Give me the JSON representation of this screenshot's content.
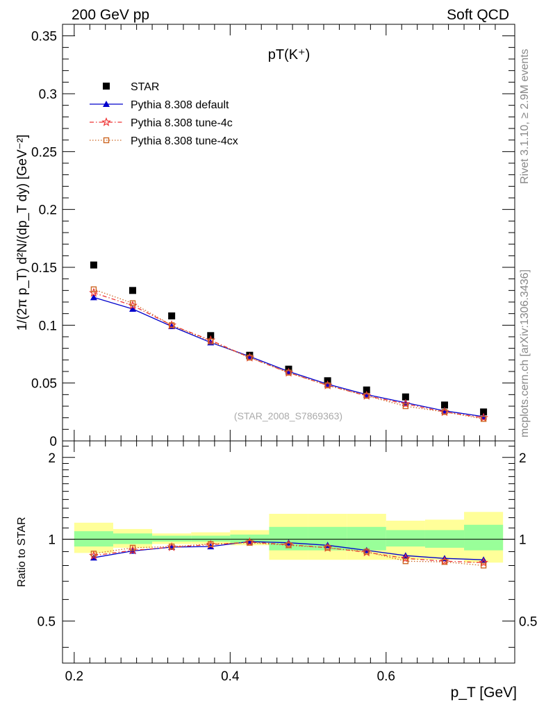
{
  "header": {
    "left": "200 GeV pp",
    "right": "Soft QCD"
  },
  "side_text": {
    "rivet": "Rivet 3.1.10, ≥ 2.9M events",
    "mcplots": "mcplots.cern.ch [arXiv:1306.3436]"
  },
  "chart_data": [
    {
      "type": "scatter",
      "title": "pT(K⁺)",
      "watermark": "(STAR_2008_S7869363)",
      "ylabel": "1/(2π p_T) d²N/(dp_T dy) [GeV⁻²]",
      "ylim": [
        0,
        0.36
      ],
      "xlim": [
        0.185,
        0.765
      ],
      "y_ticks": [
        "0.35",
        "0.3",
        "0.25",
        "0.2",
        "0.15",
        "0.1",
        "0.05",
        "0"
      ],
      "x": [
        0.225,
        0.275,
        0.325,
        0.375,
        0.425,
        0.475,
        0.525,
        0.575,
        0.625,
        0.675,
        0.725
      ],
      "series": [
        {
          "name": "STAR",
          "marker": "square",
          "color": "#000000",
          "values": [
            0.152,
            0.13,
            0.108,
            0.091,
            0.074,
            0.062,
            0.052,
            0.044,
            0.038,
            0.031,
            0.025
          ]
        },
        {
          "name": "Pythia 8.308 default",
          "marker": "triangle",
          "color": "#0000cc",
          "values": [
            0.124,
            0.114,
            0.099,
            0.085,
            0.073,
            0.06,
            0.049,
            0.04,
            0.033,
            0.026,
            0.021
          ]
        },
        {
          "name": "Pythia 8.308 tune-4c",
          "marker": "star",
          "color": "#ee3333",
          "values": [
            0.128,
            0.117,
            0.1,
            0.087,
            0.072,
            0.059,
            0.048,
            0.039,
            0.032,
            0.025,
            0.02
          ]
        },
        {
          "name": "Pythia 8.308 tune-4cx",
          "marker": "open-square",
          "color": "#cc6622",
          "values": [
            0.131,
            0.119,
            0.1,
            0.086,
            0.072,
            0.059,
            0.048,
            0.039,
            0.03,
            0.025,
            0.019
          ]
        }
      ]
    },
    {
      "type": "line",
      "ylabel": "Ratio to STAR",
      "xlabel": "p_T [GeV]",
      "ylim": [
        0.35,
        2.3
      ],
      "y_ticks": [
        "2",
        "1",
        "0.5"
      ],
      "x_ticks": [
        "0.2",
        "0.4",
        "0.6"
      ],
      "x": [
        0.225,
        0.275,
        0.325,
        0.375,
        0.425,
        0.475,
        0.525,
        0.575,
        0.625,
        0.675,
        0.725
      ],
      "bands": {
        "edges": [
          0.2,
          0.25,
          0.3,
          0.35,
          0.4,
          0.45,
          0.5,
          0.55,
          0.6,
          0.65,
          0.7,
          0.75
        ],
        "yellow_lo": [
          0.89,
          0.93,
          0.96,
          0.96,
          0.95,
          0.84,
          0.84,
          0.84,
          0.84,
          0.84,
          0.82
        ],
        "yellow_hi": [
          1.15,
          1.09,
          1.05,
          1.06,
          1.08,
          1.24,
          1.24,
          1.24,
          1.17,
          1.18,
          1.26
        ],
        "green_lo": [
          0.94,
          0.96,
          0.98,
          0.98,
          0.97,
          0.91,
          0.91,
          0.91,
          0.94,
          0.93,
          0.91
        ],
        "green_hi": [
          1.07,
          1.05,
          1.03,
          1.03,
          1.04,
          1.11,
          1.11,
          1.11,
          1.08,
          1.08,
          1.13
        ]
      },
      "series": [
        {
          "name": "Pythia 8.308 default",
          "marker": "triangle",
          "color": "#0000cc",
          "values": [
            0.855,
            0.905,
            0.935,
            0.94,
            0.98,
            0.97,
            0.95,
            0.91,
            0.87,
            0.85,
            0.84
          ]
        },
        {
          "name": "Pythia 8.308 tune-4c",
          "marker": "star",
          "color": "#ee3333",
          "values": [
            0.87,
            0.91,
            0.935,
            0.955,
            0.975,
            0.955,
            0.93,
            0.895,
            0.85,
            0.83,
            0.82
          ]
        },
        {
          "name": "Pythia 8.308 tune-4cx",
          "marker": "open-square",
          "color": "#cc6622",
          "values": [
            0.885,
            0.93,
            0.94,
            0.96,
            0.97,
            0.95,
            0.93,
            0.9,
            0.83,
            0.825,
            0.8
          ]
        }
      ]
    }
  ]
}
